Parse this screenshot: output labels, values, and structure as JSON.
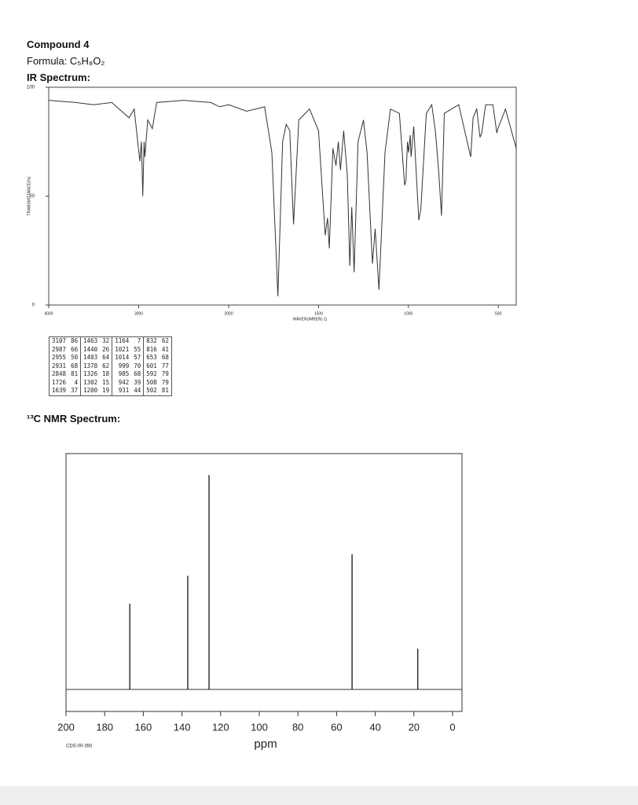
{
  "header": {
    "title": "Compound 4",
    "formula": "Formula: C₅H₈O₂",
    "ir_heading": "IR Spectrum:",
    "nmr_heading": "¹³C NMR Spectrum:"
  },
  "chart_data": [
    {
      "type": "line",
      "ylabel": "TRANSMITTANCE(%)",
      "xlabel": "WAVENUMBER(-1)",
      "color": "#333333",
      "xlim": [
        4000,
        400
      ],
      "x_scale_change_at": 2000,
      "xticks": [
        4000,
        3000,
        2000,
        1500,
        1000,
        500
      ],
      "ylim": [
        0,
        100
      ],
      "yticks": [
        0,
        50,
        100
      ],
      "x": [
        4000,
        3700,
        3500,
        3300,
        3107,
        3050,
        2987,
        2970,
        2955,
        2940,
        2931,
        2900,
        2848,
        2800,
        2500,
        2200,
        2100,
        2000,
        1900,
        1800,
        1760,
        1726,
        1700,
        1680,
        1660,
        1639,
        1610,
        1550,
        1500,
        1463,
        1450,
        1440,
        1420,
        1403,
        1390,
        1378,
        1360,
        1340,
        1326,
        1315,
        1302,
        1280,
        1250,
        1230,
        1200,
        1185,
        1164,
        1130,
        1100,
        1050,
        1021,
        1014,
        1005,
        999,
        990,
        985,
        970,
        942,
        931,
        900,
        870,
        850,
        832,
        816,
        800,
        720,
        653,
        640,
        620,
        601,
        592,
        570,
        530,
        508,
        502,
        460,
        400
      ],
      "values": [
        94,
        93,
        92,
        93,
        86,
        90,
        66,
        75,
        50,
        75,
        68,
        85,
        81,
        93,
        94,
        93,
        91,
        92,
        89,
        91,
        70,
        4,
        75,
        83,
        80,
        37,
        85,
        90,
        80,
        32,
        40,
        26,
        72,
        64,
        75,
        62,
        80,
        60,
        18,
        45,
        15,
        75,
        85,
        70,
        19,
        35,
        7,
        70,
        90,
        88,
        55,
        57,
        75,
        70,
        78,
        68,
        82,
        39,
        44,
        88,
        92,
        80,
        62,
        41,
        88,
        92,
        68,
        86,
        90,
        77,
        79,
        92,
        92,
        79,
        81,
        90,
        72
      ]
    },
    {
      "type": "stem",
      "xlabel": "ppm",
      "note": "CDS-00-350",
      "color": "#000000",
      "xlim": [
        200,
        0
      ],
      "xticks": [
        200,
        180,
        160,
        140,
        120,
        100,
        80,
        60,
        40,
        20,
        0
      ],
      "ylim": [
        0,
        110
      ],
      "x": [
        167,
        137,
        126,
        52,
        18
      ],
      "values": [
        40,
        53,
        100,
        63,
        19
      ]
    }
  ],
  "peak_table": {
    "rows": [
      [
        [
          3107,
          86
        ],
        [
          1463,
          32
        ],
        [
          1164,
          7
        ],
        [
          832,
          62
        ]
      ],
      [
        [
          2987,
          66
        ],
        [
          1440,
          26
        ],
        [
          1021,
          55
        ],
        [
          816,
          41
        ]
      ],
      [
        [
          2955,
          50
        ],
        [
          1403,
          64
        ],
        [
          1014,
          57
        ],
        [
          653,
          68
        ]
      ],
      [
        [
          2931,
          68
        ],
        [
          1378,
          62
        ],
        [
          999,
          70
        ],
        [
          601,
          77
        ]
      ],
      [
        [
          2848,
          81
        ],
        [
          1326,
          18
        ],
        [
          985,
          68
        ],
        [
          592,
          79
        ]
      ],
      [
        [
          1726,
          4
        ],
        [
          1302,
          15
        ],
        [
          942,
          39
        ],
        [
          508,
          79
        ]
      ],
      [
        [
          1639,
          37
        ],
        [
          1200,
          19
        ],
        [
          931,
          44
        ],
        [
          502,
          81
        ]
      ]
    ]
  }
}
